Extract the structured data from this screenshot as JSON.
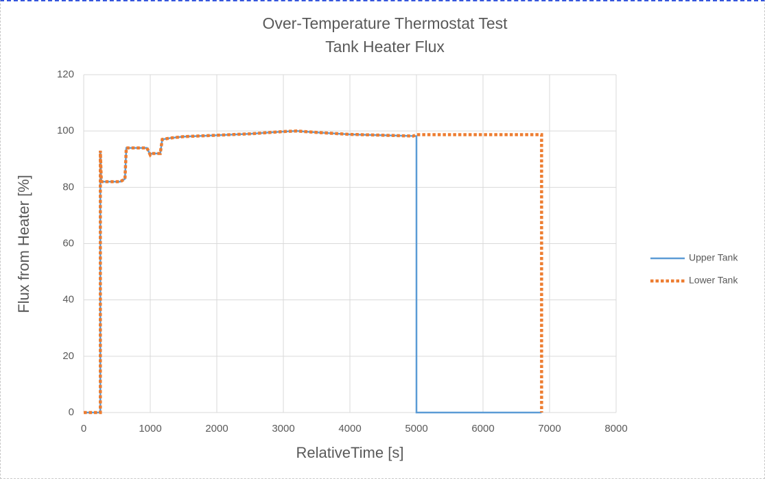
{
  "chart_data": {
    "type": "line",
    "title": "Over-Temperature Thermostat Test",
    "subtitle": "Tank Heater Flux",
    "x_label": "RelativeTime [s]",
    "y_label": "Flux from Heater [%]",
    "xlim": [
      0,
      8000
    ],
    "xticks": [
      0,
      1000,
      2000,
      3000,
      4000,
      5000,
      6000,
      7000,
      8000
    ],
    "ylim": [
      0,
      120
    ],
    "yticks": [
      0,
      20,
      40,
      60,
      80,
      100,
      120
    ],
    "grid": true,
    "legend": "right",
    "series": [
      {
        "name": "Upper Tank",
        "color": "#5b9bd5",
        "line_style": "solid",
        "x": [
          0,
          250,
          250,
          265,
          550,
          620,
          640,
          950,
          1000,
          1020,
          1150,
          1180,
          1300,
          1500,
          2000,
          2500,
          3000,
          3200,
          3500,
          4000,
          4500,
          5000,
          5000,
          6880
        ],
        "values": [
          0,
          0,
          93,
          82,
          82,
          83,
          94,
          94,
          91.5,
          92,
          92,
          97,
          97.5,
          98,
          98.5,
          99,
          99.8,
          100,
          99.5,
          98.8,
          98.5,
          98.2,
          0,
          0
        ]
      },
      {
        "name": "Lower Tank",
        "color": "#ed7d31",
        "line_style": "dotted",
        "x": [
          0,
          250,
          250,
          265,
          550,
          620,
          640,
          950,
          1000,
          1020,
          1150,
          1180,
          1300,
          1500,
          2000,
          2500,
          3000,
          3200,
          3500,
          4000,
          4500,
          4950,
          5000,
          6880,
          6880
        ],
        "values": [
          0,
          0,
          93,
          82,
          82,
          83,
          94,
          94,
          91.5,
          92,
          92,
          97,
          97.5,
          98,
          98.5,
          99,
          99.8,
          100,
          99.5,
          98.8,
          98.5,
          98.2,
          98.7,
          98.7,
          0
        ]
      }
    ]
  }
}
